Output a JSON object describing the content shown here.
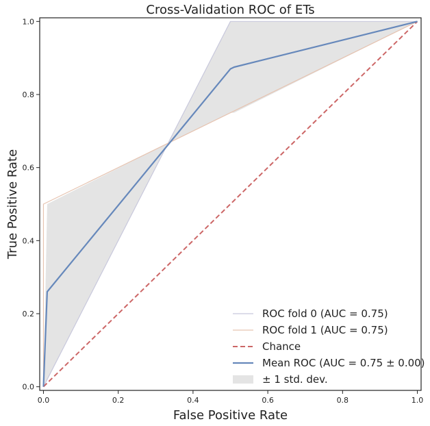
{
  "chart_data": {
    "type": "line",
    "title": "Cross-Validation ROC of ETs",
    "xlabel": "False Positive Rate",
    "ylabel": "True Positive Rate",
    "xlim": [
      -0.01,
      1.01
    ],
    "ylim": [
      -0.01,
      1.01
    ],
    "xticks": [
      "0.0",
      "0.2",
      "0.4",
      "0.6",
      "0.8",
      "1.0"
    ],
    "yticks": [
      "0.0",
      "0.2",
      "0.4",
      "0.6",
      "0.8",
      "1.0"
    ],
    "legend_position": "lower-right",
    "series": [
      {
        "name": "ROC fold 0 (AUC = 0.75)",
        "color": "#c8c8dc",
        "style": "solid",
        "x": [
          0.0,
          0.0,
          0.5,
          1.0
        ],
        "y": [
          0.0,
          0.0,
          1.0,
          1.0
        ]
      },
      {
        "name": "ROC fold 1 (AUC = 0.75)",
        "color": "#e6c3b0",
        "style": "solid",
        "x": [
          0.0,
          0.0,
          1.0
        ],
        "y": [
          0.0,
          0.5,
          1.0
        ]
      },
      {
        "name": "Chance",
        "color": "#cc6666",
        "style": "dashed",
        "x": [
          0.0,
          1.0
        ],
        "y": [
          0.0,
          1.0
        ]
      },
      {
        "name": "Mean ROC (AUC = 0.75 ± 0.00)",
        "color": "#6688bb",
        "style": "solid",
        "x": [
          0.0,
          0.01,
          0.5,
          0.51,
          1.0
        ],
        "y": [
          0.0,
          0.26,
          0.87,
          0.875,
          1.0
        ]
      }
    ],
    "band": {
      "name": "± 1 std. dev.",
      "color": "#d9d9d9",
      "x": [
        0.0,
        0.01,
        0.333,
        0.5,
        0.51,
        1.0
      ],
      "upper": [
        0.0,
        0.5,
        0.667,
        1.0,
        1.0,
        1.0
      ],
      "lower": [
        0.0,
        0.02,
        0.667,
        0.75,
        0.75,
        1.0
      ]
    }
  }
}
